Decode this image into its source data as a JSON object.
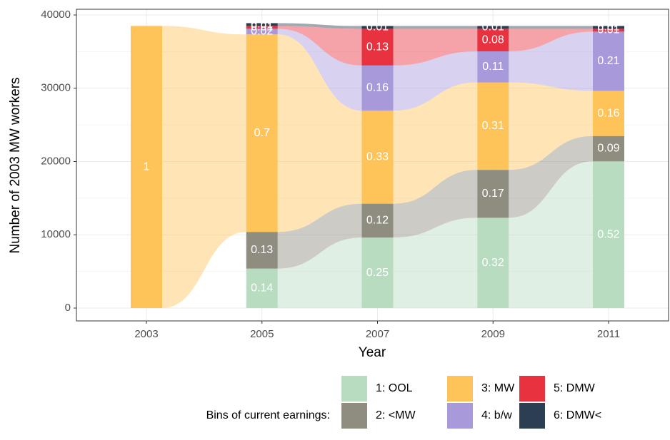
{
  "chart_data": {
    "type": "alluvial",
    "xlabel": "Year",
    "ylabel": "Number of 2003 MW workers",
    "categories": [
      "2003",
      "2005",
      "2007",
      "2009",
      "2011"
    ],
    "ylim": [
      0,
      40000
    ],
    "yticks": [
      0,
      10000,
      20000,
      30000,
      40000
    ],
    "grid": true,
    "legend_title": "Bins of current earnings:",
    "legend_position": "bottom",
    "series": [
      {
        "name": "1: OOL",
        "color": "#b8dcc0",
        "values": [
          0,
          5390,
          9625,
          12320,
          20020
        ],
        "value_labels": [
          null,
          "0.14",
          "0.25",
          "0.32",
          "0.52"
        ]
      },
      {
        "name": "2: <MW",
        "color": "#8f8c80",
        "values": [
          0,
          5005,
          4620,
          6545,
          3465
        ],
        "value_labels": [
          null,
          "0.13",
          "0.12",
          "0.17",
          "0.09"
        ]
      },
      {
        "name": "3: MW",
        "color": "#fec45a",
        "values": [
          38500,
          26950,
          12705,
          11935,
          6160
        ],
        "value_labels": [
          "1",
          "0.7",
          "0.33",
          "0.31",
          "0.16"
        ]
      },
      {
        "name": "4: b/w",
        "color": "#a899db",
        "values": [
          0,
          770,
          6160,
          4235,
          8085
        ],
        "value_labels": [
          null,
          "0.02",
          "0.16",
          "0.11",
          "0.21"
        ]
      },
      {
        "name": "5: DMW",
        "color": "#e8323f",
        "values": [
          0,
          385,
          5005,
          3080,
          385
        ],
        "value_labels": [
          null,
          "0.01",
          "0.13",
          "0.08",
          "0.01"
        ]
      },
      {
        "name": "6: DMW<",
        "color": "#2c3e52",
        "values": [
          0,
          385,
          385,
          385,
          385
        ],
        "value_labels": [
          null,
          "0.01",
          "0.01",
          "0.01",
          "0.01"
        ]
      }
    ]
  }
}
